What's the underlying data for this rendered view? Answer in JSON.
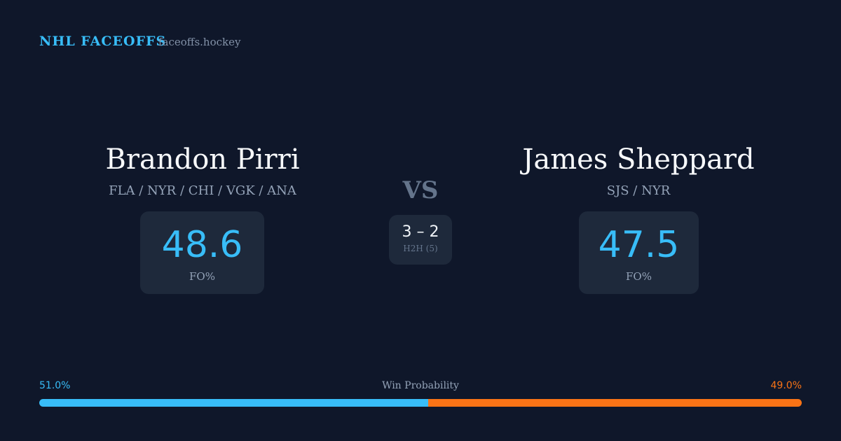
{
  "header": {
    "brand": "NHL FACEOFFS",
    "site": "faceoffs.hockey"
  },
  "players": [
    {
      "name": "Brandon Pirri",
      "teams": "FLA / NYR / CHI / VGK / ANA",
      "fo_pct": 48.6,
      "fo_label": "FO%"
    },
    {
      "name": "James Sheppard",
      "teams": "SJS / NYR",
      "fo_pct": 47.5,
      "fo_label": "FO%"
    }
  ],
  "versus": {
    "label": "VS",
    "record": "3 – 2",
    "record_label": "H2H (5)"
  },
  "win_probability": {
    "label": "Win Probability",
    "values": [
      51.0,
      49.0
    ],
    "value_labels": [
      "51.0%",
      "49.0%"
    ],
    "colors": [
      "#38bdf8",
      "#f97316"
    ]
  }
}
